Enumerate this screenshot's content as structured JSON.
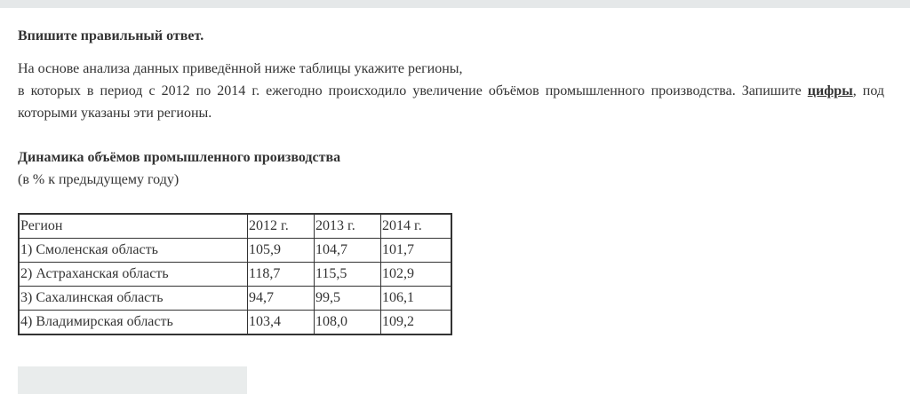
{
  "instruction": "Впишите правильный ответ.",
  "question": {
    "line1": "На основе анализа данных приведённой ниже таблицы укажите регионы,",
    "line2_before": "в которых в период с 2012 по 2014 г. ежегодно происходило увеличение объёмов промышленного производства. Запишите ",
    "emphasis": "цифры",
    "line2_after": ", под которыми указаны эти регионы."
  },
  "table_title": "Динамика объёмов промышленного производства",
  "table_subtitle": "(в % к предыдущему году)",
  "table": {
    "headers": [
      "Регион",
      "2012 г.",
      "2013 г.",
      "2014 г."
    ],
    "rows": [
      [
        "1) Смоленская область",
        "105,9",
        "104,7",
        "101,7"
      ],
      [
        "2) Астраханская область",
        "118,7",
        "115,5",
        "102,9"
      ],
      [
        "3) Сахалинская область",
        "94,7",
        "99,5",
        "106,1"
      ],
      [
        "4) Владимирская область",
        "103,4",
        "108,0",
        "109,2"
      ]
    ]
  },
  "answer": {
    "value": "",
    "placeholder": ""
  },
  "colors": {
    "topbar": "#e5e8e9",
    "input_bg": "#e9ecec",
    "text": "#333333"
  }
}
